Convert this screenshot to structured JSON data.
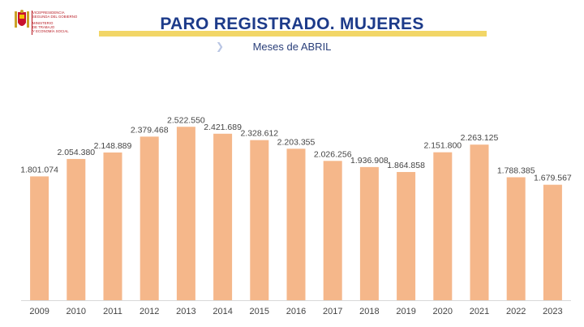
{
  "logo": {
    "lines_top": [
      "VICEPRESIDENCIA",
      "SEGUNDA DEL GOBIERNO"
    ],
    "lines_bottom": [
      "MINISTERIO",
      "DE TRABAJO",
      "Y ECONOMÍA SOCIAL"
    ]
  },
  "colors": {
    "bar": "#f5b78a",
    "title": "#1d3b8a",
    "accent_bar": "#f2d667",
    "axis": "#d9d9d9"
  },
  "chart_data": {
    "type": "bar",
    "title": "PARO REGISTRADO. MUJERES",
    "subtitle": "Meses de ABRIL",
    "categories": [
      "2009",
      "2010",
      "2011",
      "2012",
      "2013",
      "2014",
      "2015",
      "2016",
      "2017",
      "2018",
      "2019",
      "2020",
      "2021",
      "2022",
      "2023"
    ],
    "values": [
      1801074,
      2054380,
      2148889,
      2379468,
      2522550,
      2421689,
      2328612,
      2203355,
      2026256,
      1936908,
      1864858,
      2151800,
      2263125,
      1788385,
      1679567
    ],
    "value_labels": [
      "1.801.074",
      "2.054.380",
      "2.148.889",
      "2.379.468",
      "2.522.550",
      "2.421.689",
      "2.328.612",
      "2.203.355",
      "2.026.256",
      "1.936.908",
      "1.864.858",
      "2.151.800",
      "2.263.125",
      "1.788.385",
      "1.679.567"
    ],
    "ylim": [
      0,
      2620000
    ],
    "grid": false,
    "legend": "none"
  }
}
